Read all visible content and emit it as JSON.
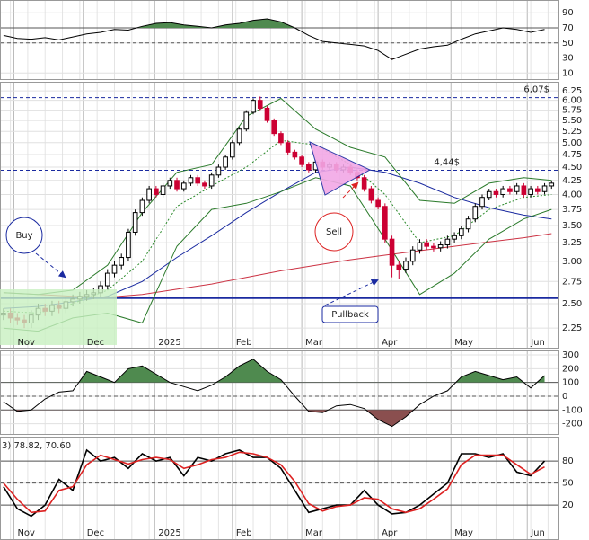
{
  "chart_data": [
    {
      "type": "line",
      "x": [
        0,
        2,
        4,
        6,
        8,
        10,
        12,
        14,
        16,
        18,
        20,
        22,
        24,
        26,
        28,
        30,
        32,
        34,
        36,
        38,
        40,
        42,
        44,
        46,
        48,
        50,
        52,
        54,
        56,
        58,
        60,
        62,
        64,
        66,
        68,
        70,
        72,
        74,
        76,
        78
      ],
      "series": [
        {
          "color": "#000000",
          "values": [
            60,
            56,
            55,
            57,
            54,
            58,
            62,
            64,
            68,
            67,
            72,
            76,
            77,
            74,
            72,
            70,
            74,
            76,
            80,
            82,
            78,
            70,
            60,
            52,
            50,
            48,
            46,
            40,
            28,
            35,
            42,
            45,
            47,
            55,
            62,
            66,
            70,
            68,
            64,
            68
          ]
        }
      ],
      "ylim": [
        2,
        107
      ],
      "yticks": [
        90,
        70,
        50,
        30,
        10
      ],
      "levels": [
        {
          "value": 70
        },
        {
          "value": 50,
          "dashed": true
        },
        {
          "value": 30
        }
      ],
      "fill": {
        "above": 70,
        "above_color": "#4f8a4f",
        "below": 30,
        "below_color": "#8a4f4f"
      }
    },
    {
      "type": "candlestick",
      "log": true,
      "x": [
        0,
        1,
        2,
        3,
        4,
        5,
        6,
        7,
        8,
        9,
        10,
        11,
        12,
        13,
        14,
        15,
        16,
        17,
        18,
        19,
        20,
        21,
        22,
        23,
        24,
        25,
        26,
        27,
        28,
        29,
        30,
        31,
        32,
        33,
        34,
        35,
        36,
        37,
        38,
        39,
        40,
        41,
        42,
        43,
        44,
        45,
        46,
        47,
        48,
        49,
        50,
        51,
        52,
        53,
        54,
        55,
        56,
        57,
        58,
        59,
        60,
        61,
        62,
        63,
        64,
        65,
        66,
        67,
        68,
        69,
        70,
        71,
        72,
        73,
        74,
        75,
        76,
        77,
        78,
        79
      ],
      "open": [
        2.38,
        2.4,
        2.35,
        2.33,
        2.3,
        2.38,
        2.45,
        2.42,
        2.48,
        2.45,
        2.52,
        2.55,
        2.58,
        2.6,
        2.62,
        2.7,
        2.85,
        2.95,
        3.05,
        3.4,
        3.7,
        3.9,
        4.1,
        4.0,
        4.15,
        4.25,
        4.1,
        4.2,
        4.3,
        4.2,
        4.15,
        4.35,
        4.5,
        4.7,
        5.0,
        5.3,
        5.7,
        6.0,
        5.8,
        5.5,
        5.2,
        5.0,
        4.8,
        4.7,
        4.55,
        4.45,
        4.6,
        4.5,
        4.55,
        4.45,
        4.5,
        4.4,
        4.3,
        4.1,
        3.9,
        3.8,
        3.3,
        2.95,
        2.9,
        3.0,
        3.15,
        3.25,
        3.2,
        3.18,
        3.22,
        3.3,
        3.35,
        3.45,
        3.6,
        3.8,
        3.95,
        4.05,
        4.0,
        4.1,
        4.05,
        4.15,
        4.0,
        4.1,
        4.05,
        4.15
      ],
      "high": [
        2.45,
        2.45,
        2.4,
        2.38,
        2.43,
        2.5,
        2.5,
        2.53,
        2.53,
        2.57,
        2.6,
        2.63,
        2.65,
        2.67,
        2.75,
        2.9,
        3.0,
        3.1,
        3.45,
        3.75,
        3.95,
        4.15,
        4.15,
        4.2,
        4.3,
        4.3,
        4.25,
        4.35,
        4.35,
        4.25,
        4.4,
        4.55,
        4.75,
        5.05,
        5.35,
        5.75,
        6.05,
        6.1,
        5.85,
        5.55,
        5.25,
        5.05,
        4.85,
        4.75,
        4.6,
        4.65,
        4.65,
        4.6,
        4.6,
        4.55,
        4.55,
        4.45,
        4.35,
        4.15,
        3.95,
        3.85,
        3.35,
        3.0,
        3.05,
        3.2,
        3.3,
        3.3,
        3.25,
        3.27,
        3.35,
        3.4,
        3.5,
        3.65,
        3.85,
        4.0,
        4.1,
        4.1,
        4.15,
        4.15,
        4.2,
        4.2,
        4.15,
        4.15,
        4.2,
        4.25
      ],
      "low": [
        2.33,
        2.3,
        2.28,
        2.25,
        2.25,
        2.33,
        2.37,
        2.37,
        2.4,
        2.4,
        2.47,
        2.5,
        2.53,
        2.55,
        2.57,
        2.65,
        2.8,
        2.9,
        3.0,
        3.35,
        3.65,
        3.85,
        3.95,
        3.95,
        4.1,
        4.05,
        4.05,
        4.15,
        4.15,
        4.1,
        4.1,
        4.3,
        4.45,
        4.65,
        4.95,
        5.25,
        5.65,
        5.75,
        5.45,
        5.15,
        4.95,
        4.75,
        4.65,
        4.5,
        4.4,
        4.4,
        4.45,
        4.45,
        4.4,
        4.4,
        4.35,
        4.25,
        4.05,
        3.85,
        3.75,
        3.25,
        2.8,
        2.78,
        2.85,
        2.95,
        3.1,
        3.15,
        3.13,
        3.13,
        3.17,
        3.25,
        3.3,
        3.4,
        3.55,
        3.75,
        3.9,
        3.95,
        3.95,
        4.0,
        4.0,
        3.95,
        3.95,
        4.0,
        4.0,
        4.1
      ],
      "close": [
        2.4,
        2.35,
        2.33,
        2.3,
        2.38,
        2.45,
        2.42,
        2.48,
        2.45,
        2.52,
        2.55,
        2.58,
        2.6,
        2.62,
        2.7,
        2.85,
        2.95,
        3.05,
        3.4,
        3.7,
        3.9,
        4.1,
        4.0,
        4.15,
        4.25,
        4.1,
        4.2,
        4.3,
        4.2,
        4.15,
        4.35,
        4.5,
        4.7,
        5.0,
        5.3,
        5.7,
        6.0,
        5.8,
        5.5,
        5.2,
        5.0,
        4.8,
        4.7,
        4.55,
        4.45,
        4.6,
        4.5,
        4.55,
        4.45,
        4.5,
        4.4,
        4.3,
        4.1,
        3.9,
        3.8,
        3.3,
        2.95,
        2.9,
        3.0,
        3.15,
        3.25,
        3.2,
        3.18,
        3.22,
        3.3,
        3.35,
        3.45,
        3.6,
        3.8,
        3.95,
        4.05,
        4.0,
        4.1,
        4.05,
        4.15,
        4.0,
        4.1,
        4.05,
        4.15,
        4.2
      ],
      "up_color": "#000000",
      "down_color": "#cc0033",
      "overlays": [
        {
          "color": "#cc3344",
          "x": [
            0,
            5,
            10,
            15,
            20,
            25,
            30,
            35,
            40,
            45,
            50,
            55,
            60,
            65,
            70,
            75,
            79
          ],
          "values": [
            2.62,
            2.6,
            2.58,
            2.57,
            2.6,
            2.66,
            2.72,
            2.8,
            2.88,
            2.95,
            3.02,
            3.08,
            3.14,
            3.2,
            3.26,
            3.32,
            3.38
          ]
        },
        {
          "color": "#1a2aa0",
          "x": [
            0,
            5,
            10,
            15,
            20,
            25,
            30,
            35,
            40,
            45,
            50,
            55,
            60,
            65,
            70,
            75,
            79
          ],
          "values": [
            2.45,
            2.47,
            2.52,
            2.58,
            2.75,
            3.05,
            3.35,
            3.7,
            4.05,
            4.4,
            4.5,
            4.4,
            4.2,
            3.95,
            3.78,
            3.66,
            3.6
          ]
        },
        {
          "color": "#2a7a2a",
          "x": [
            0,
            5,
            10,
            15,
            20,
            25,
            30,
            35,
            40,
            45,
            50,
            55,
            60,
            65,
            70,
            75,
            79
          ],
          "values": [
            2.62,
            2.6,
            2.65,
            2.95,
            3.7,
            4.4,
            4.55,
            5.6,
            6.05,
            5.3,
            4.9,
            4.7,
            3.9,
            3.85,
            4.2,
            4.3,
            4.25
          ]
        },
        {
          "color": "#2a7a2a",
          "x": [
            0,
            5,
            10,
            15,
            20,
            25,
            30,
            35,
            40,
            45,
            50,
            55,
            60,
            65,
            70,
            75,
            79
          ],
          "values": [
            2.25,
            2.22,
            2.35,
            2.4,
            2.3,
            3.2,
            3.75,
            3.85,
            4.05,
            4.3,
            4.15,
            3.3,
            2.6,
            2.85,
            3.3,
            3.6,
            3.75
          ]
        },
        {
          "color": "#2a8a2a",
          "style": "dotted",
          "x": [
            0,
            5,
            10,
            15,
            20,
            25,
            30,
            35,
            40,
            45,
            50,
            55,
            60,
            65,
            70,
            75,
            79
          ],
          "values": [
            2.42,
            2.4,
            2.5,
            2.65,
            3.0,
            3.8,
            4.15,
            4.5,
            5.05,
            4.95,
            4.55,
            4.0,
            3.25,
            3.35,
            3.75,
            3.95,
            4.0
          ]
        }
      ],
      "levels": [
        {
          "value": 6.07,
          "label": "6,07$",
          "dashed": true,
          "color": "#1a2aa0"
        },
        {
          "value": 4.44,
          "label": "4,44$",
          "dashed": true,
          "color": "#1a2aa0"
        },
        {
          "value": 2.56,
          "color": "#1a2aa0"
        }
      ],
      "annotations": [
        "Buy",
        "Sell",
        "Pullback"
      ],
      "xlim": [
        -0.5,
        80
      ],
      "xticks": [
        {
          "value": 1.5,
          "label": "Nov"
        },
        {
          "value": 11.5,
          "label": "Dec"
        },
        {
          "value": 21.8,
          "label": "2025"
        },
        {
          "value": 33,
          "label": "Feb"
        },
        {
          "value": 43,
          "label": "Mar"
        },
        {
          "value": 54,
          "label": "Apr"
        },
        {
          "value": 64.5,
          "label": "May"
        },
        {
          "value": 75.5,
          "label": "Jun"
        }
      ],
      "ylim": [
        2.1,
        6.4
      ],
      "yticks": [
        6.25,
        {
          "value": 6,
          "label": "6.00"
        },
        5.75,
        {
          "value": 5.5,
          "label": "5.50"
        },
        5.25,
        {
          "value": 5,
          "label": "5.00"
        },
        4.75,
        {
          "value": 4.5,
          "label": "4.50"
        },
        4.25,
        {
          "value": 4,
          "label": "4.00"
        },
        3.75,
        {
          "value": 3.5,
          "label": "3.50"
        },
        3.25,
        {
          "value": 3,
          "label": "3.00"
        },
        2.75,
        {
          "value": 2.5,
          "label": "2.50"
        },
        2.25
      ]
    },
    {
      "type": "line",
      "x": [
        0,
        2,
        4,
        6,
        8,
        10,
        12,
        14,
        16,
        18,
        20,
        22,
        24,
        26,
        28,
        30,
        32,
        34,
        36,
        38,
        40,
        42,
        44,
        46,
        48,
        50,
        52,
        54,
        56,
        58,
        60,
        62,
        64,
        66,
        68,
        70,
        72,
        74,
        76,
        78
      ],
      "series": [
        {
          "color": "#000000",
          "values": [
            -40,
            -110,
            -100,
            -20,
            30,
            40,
            180,
            140,
            100,
            200,
            220,
            160,
            100,
            70,
            40,
            80,
            140,
            220,
            270,
            180,
            120,
            0,
            -110,
            -120,
            -70,
            -60,
            -90,
            -170,
            -220,
            -150,
            -60,
            0,
            40,
            140,
            180,
            150,
            120,
            140,
            60,
            150
          ]
        }
      ],
      "ylim": [
        -255,
        320
      ],
      "yticks": [
        300,
        200,
        100,
        0,
        -100,
        -200
      ],
      "levels": [
        {
          "value": 100
        },
        {
          "value": 0,
          "dashed": true
        },
        {
          "value": -100
        }
      ],
      "fill": {
        "above": 100,
        "above_color": "#4f8a4f",
        "below": -100,
        "below_color": "#8a4f4f"
      }
    },
    {
      "type": "line",
      "title": "3) 78.82, 70.60",
      "x": [
        0,
        2,
        4,
        6,
        8,
        10,
        12,
        14,
        16,
        18,
        20,
        22,
        24,
        26,
        28,
        30,
        32,
        34,
        36,
        38,
        40,
        42,
        44,
        46,
        48,
        50,
        52,
        54,
        56,
        58,
        60,
        62,
        64,
        66,
        68,
        70,
        72,
        74,
        76,
        78
      ],
      "series": [
        {
          "color": "#000000",
          "values": [
            45,
            15,
            5,
            20,
            55,
            40,
            95,
            80,
            85,
            70,
            90,
            80,
            85,
            60,
            85,
            80,
            90,
            95,
            85,
            85,
            70,
            40,
            10,
            15,
            20,
            20,
            40,
            20,
            8,
            10,
            20,
            35,
            50,
            90,
            90,
            85,
            90,
            65,
            60,
            80
          ]
        },
        {
          "color": "#dd2222",
          "values": [
            50,
            28,
            10,
            12,
            40,
            45,
            75,
            88,
            82,
            76,
            82,
            85,
            82,
            70,
            75,
            82,
            85,
            92,
            90,
            85,
            75,
            52,
            22,
            12,
            18,
            20,
            30,
            28,
            15,
            10,
            15,
            28,
            42,
            75,
            88,
            88,
            88,
            75,
            62,
            72
          ]
        }
      ],
      "ylim": [
        -8,
        112
      ],
      "yticks": [
        80,
        50,
        20
      ],
      "levels": [
        {
          "value": 80
        },
        {
          "value": 50,
          "dashed": true
        },
        {
          "value": 20
        }
      ],
      "xlim": [
        -0.5,
        80
      ],
      "xticks": [
        {
          "value": 1.5,
          "label": "Nov"
        },
        {
          "value": 11.5,
          "label": "Dec"
        },
        {
          "value": 21.8,
          "label": "2025"
        },
        {
          "value": 33,
          "label": "Feb"
        },
        {
          "value": 43,
          "label": "Mar"
        },
        {
          "value": 54,
          "label": "Apr"
        },
        {
          "value": 64.5,
          "label": "May"
        },
        {
          "value": 75.5,
          "label": "Jun"
        }
      ]
    }
  ]
}
